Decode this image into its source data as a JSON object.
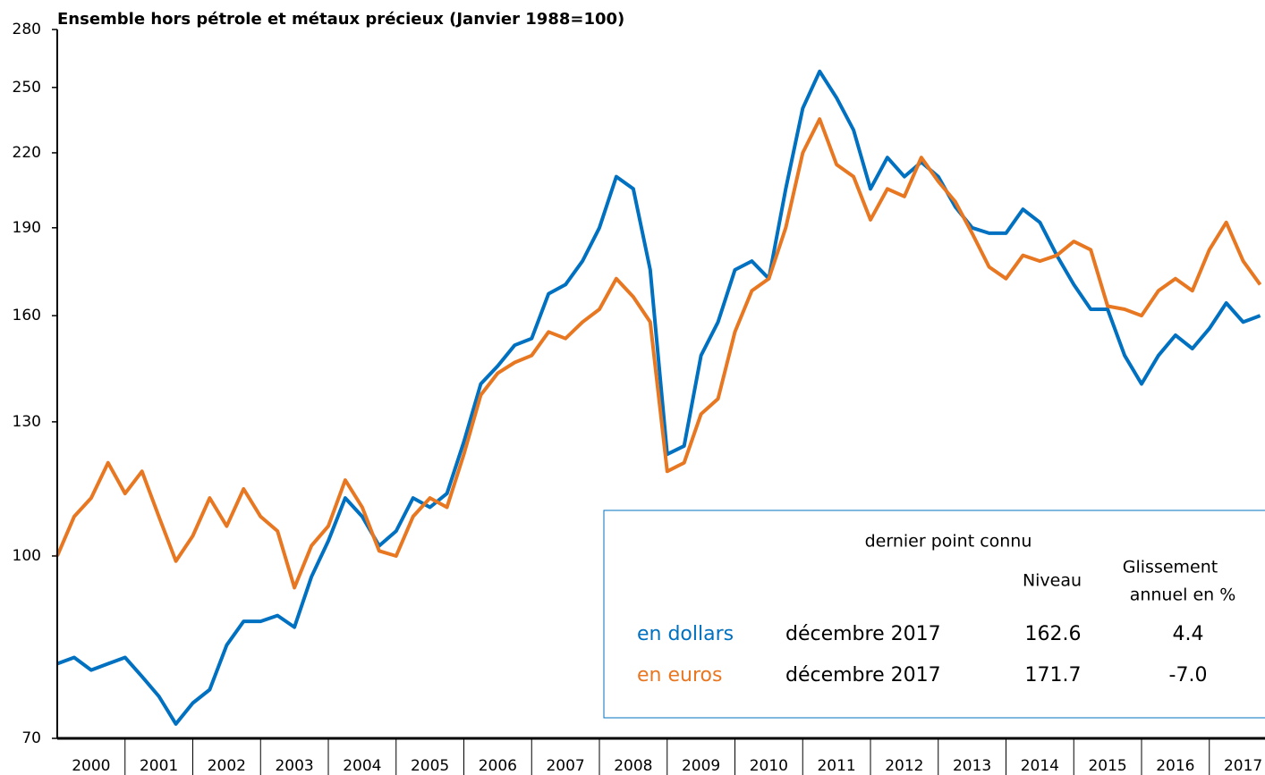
{
  "chart_data": {
    "type": "line",
    "title": "Ensemble hors pétrole et métaux précieux (Janvier 1988=100)",
    "log_scale": true,
    "ylim": [
      70,
      280
    ],
    "yticks": [
      70,
      100,
      130,
      160,
      190,
      220,
      250,
      280
    ],
    "xlim": [
      2000,
      2018
    ],
    "xticks": [
      2000,
      2001,
      2002,
      2003,
      2004,
      2005,
      2006,
      2007,
      2008,
      2009,
      2010,
      2011,
      2012,
      2013,
      2014,
      2015,
      2016,
      2017
    ],
    "x": [
      2000,
      2000.25,
      2000.5,
      2000.75,
      2001,
      2001.25,
      2001.5,
      2001.75,
      2002,
      2002.25,
      2002.5,
      2002.75,
      2003,
      2003.25,
      2003.5,
      2003.75,
      2004,
      2004.25,
      2004.5,
      2004.75,
      2005,
      2005.25,
      2005.5,
      2005.75,
      2006,
      2006.25,
      2006.5,
      2006.75,
      2007,
      2007.25,
      2007.5,
      2007.75,
      2008,
      2008.25,
      2008.5,
      2008.75,
      2009,
      2009.25,
      2009.5,
      2009.75,
      2010,
      2010.25,
      2010.5,
      2010.75,
      2011,
      2011.25,
      2011.5,
      2011.75,
      2012,
      2012.25,
      2012.5,
      2012.75,
      2013,
      2013.25,
      2013.5,
      2013.75,
      2014,
      2014.25,
      2014.5,
      2014.75,
      2015,
      2015.25,
      2015.5,
      2015.75,
      2016,
      2016.25,
      2016.5,
      2016.75,
      2017,
      2017.25,
      2017.5,
      2017.75
    ],
    "series": [
      {
        "name": "en dollars",
        "color": "#0070c0",
        "values": [
          81,
          82,
          80,
          81,
          82,
          79,
          76,
          72,
          75,
          77,
          84,
          88,
          88,
          89,
          87,
          96,
          103,
          112,
          108,
          102,
          105,
          112,
          110,
          113,
          125,
          140,
          145,
          151,
          153,
          167,
          170,
          178,
          190,
          210,
          205,
          175,
          122,
          124,
          148,
          158,
          175,
          178,
          172,
          205,
          240,
          258,
          245,
          230,
          205,
          218,
          210,
          216,
          210,
          198,
          190,
          188,
          188,
          197,
          192,
          180,
          170,
          162,
          162,
          148,
          140,
          148,
          154,
          150,
          156,
          164,
          158,
          160
        ]
      },
      {
        "name": "en euros",
        "color": "#e87722",
        "values": [
          100,
          108,
          112,
          120,
          113,
          118,
          108,
          99,
          104,
          112,
          106,
          114,
          108,
          105,
          94,
          102,
          106,
          116,
          110,
          101,
          100,
          108,
          112,
          110,
          122,
          137,
          143,
          146,
          148,
          155,
          153,
          158,
          162,
          172,
          166,
          158,
          118,
          120,
          132,
          136,
          155,
          168,
          172,
          190,
          220,
          235,
          215,
          210,
          193,
          205,
          202,
          218,
          208,
          200,
          188,
          176,
          172,
          180,
          178,
          180,
          185,
          182,
          163,
          162,
          160,
          168,
          172,
          168,
          182,
          192,
          178,
          170
        ]
      }
    ],
    "info_table": {
      "title": "dernier point connu",
      "col_level": "Niveau",
      "col_change": [
        "Glissement",
        "annuel en %"
      ],
      "rows": [
        {
          "date": "décembre 2017",
          "level": 162.6,
          "change": 4.4
        },
        {
          "date": "décembre 2017",
          "level": 171.7,
          "change": {
            "value": -7,
            "label": "-7.0"
          }
        }
      ]
    }
  }
}
